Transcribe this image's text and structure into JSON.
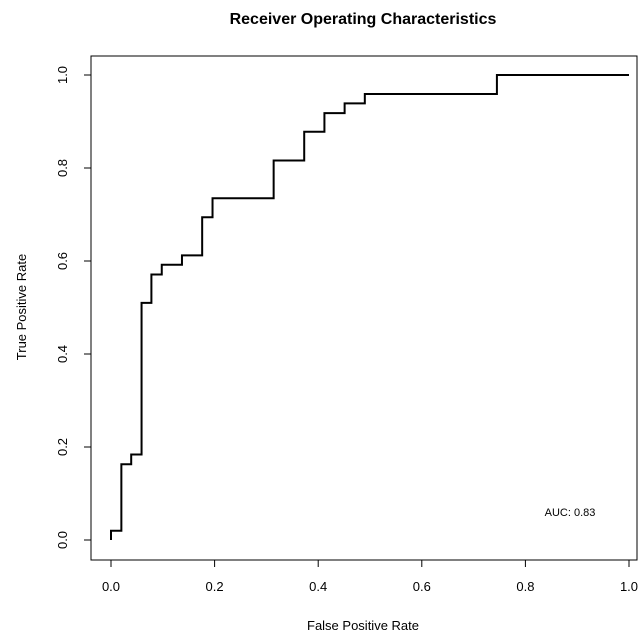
{
  "chart_data": {
    "type": "line",
    "title": "Receiver Operating Characteristics",
    "xlabel": "False Positive Rate",
    "ylabel": "True Positive Rate",
    "xlim": [
      0,
      1
    ],
    "ylim": [
      0,
      1
    ],
    "x_ticks": [
      {
        "value": 0.0,
        "label": "0.0"
      },
      {
        "value": 0.2,
        "label": "0.2"
      },
      {
        "value": 0.4,
        "label": "0.4"
      },
      {
        "value": 0.6,
        "label": "0.6"
      },
      {
        "value": 0.8,
        "label": "0.8"
      },
      {
        "value": 1.0,
        "label": "1.0"
      }
    ],
    "y_ticks": [
      {
        "value": 0.0,
        "label": "0.0"
      },
      {
        "value": 0.2,
        "label": "0.2"
      },
      {
        "value": 0.4,
        "label": "0.4"
      },
      {
        "value": 0.6,
        "label": "0.6"
      },
      {
        "value": 0.8,
        "label": "0.8"
      },
      {
        "value": 1.0,
        "label": "1.0"
      }
    ],
    "grid": false,
    "series": [
      {
        "x": [
          0.0,
          0.0,
          0.02,
          0.02,
          0.039,
          0.039,
          0.059,
          0.059,
          0.078,
          0.078,
          0.098,
          0.098,
          0.137,
          0.137,
          0.176,
          0.176,
          0.196,
          0.196,
          0.314,
          0.314,
          0.373,
          0.373,
          0.412,
          0.412,
          0.451,
          0.451,
          0.49,
          0.49,
          0.745,
          0.745,
          1.0
        ],
        "y": [
          0.0,
          0.02,
          0.02,
          0.163,
          0.163,
          0.184,
          0.184,
          0.51,
          0.51,
          0.571,
          0.571,
          0.592,
          0.592,
          0.612,
          0.612,
          0.694,
          0.694,
          0.735,
          0.735,
          0.816,
          0.816,
          0.878,
          0.878,
          0.918,
          0.918,
          0.939,
          0.939,
          0.959,
          0.959,
          1.0,
          1.0
        ]
      }
    ],
    "annotation": {
      "text": "AUC: 0.83"
    }
  }
}
